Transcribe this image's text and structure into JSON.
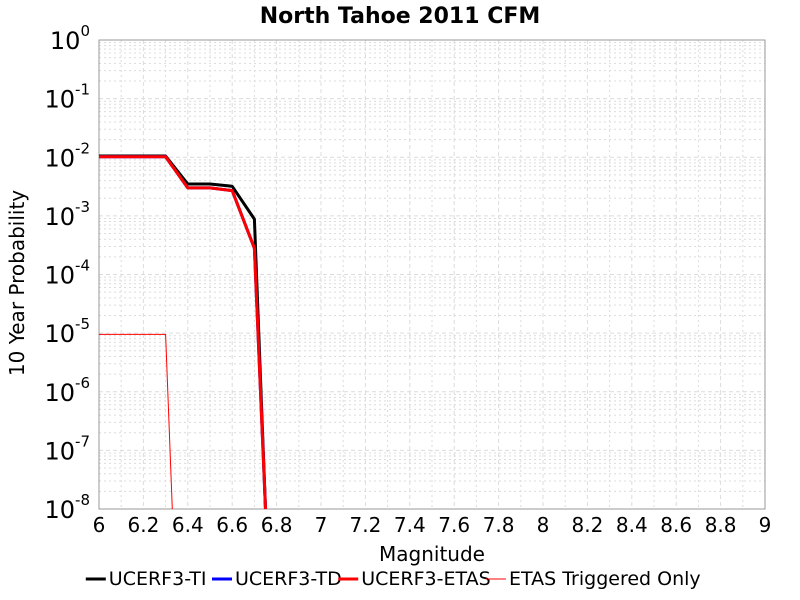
{
  "chart_data": {
    "type": "line",
    "title": "North Tahoe 2011 CFM",
    "xlabel": "Magnitude",
    "ylabel": "10 Year Probability",
    "xlim": [
      6,
      9
    ],
    "ylim": [
      1e-08,
      1
    ],
    "y_scale": "log",
    "grid": true,
    "legend_position": "bottom",
    "x_ticks": [
      "6",
      "6.2",
      "6.4",
      "6.6",
      "6.8",
      "7",
      "7.2",
      "7.4",
      "7.6",
      "7.8",
      "8",
      "8.2",
      "8.4",
      "8.6",
      "8.8",
      "9"
    ],
    "y_ticks": [
      {
        "base": "10",
        "exp": "0",
        "value": 1
      },
      {
        "base": "10",
        "exp": "-1",
        "value": 0.1
      },
      {
        "base": "10",
        "exp": "-2",
        "value": 0.01
      },
      {
        "base": "10",
        "exp": "-3",
        "value": 0.001
      },
      {
        "base": "10",
        "exp": "-4",
        "value": 0.0001
      },
      {
        "base": "10",
        "exp": "-5",
        "value": 1e-05
      },
      {
        "base": "10",
        "exp": "-6",
        "value": 1e-06
      },
      {
        "base": "10",
        "exp": "-7",
        "value": 1e-07
      },
      {
        "base": "10",
        "exp": "-8",
        "value": 1e-08
      }
    ],
    "series": [
      {
        "name": "UCERF3-TI",
        "color": "#000000",
        "width": 3,
        "x": [
          6.0,
          6.3,
          6.4,
          6.5,
          6.6,
          6.7,
          6.75
        ],
        "y": [
          0.0105,
          0.0105,
          0.0035,
          0.0035,
          0.0032,
          0.00088,
          1e-08
        ]
      },
      {
        "name": "UCERF3-TD",
        "color": "#0000ff",
        "width": 3,
        "x": [
          6.0,
          6.3,
          6.4,
          6.5,
          6.6,
          6.7,
          6.75
        ],
        "y": [
          0.0102,
          0.0102,
          0.003,
          0.003,
          0.0027,
          0.00028,
          1e-08
        ]
      },
      {
        "name": "UCERF3-ETAS",
        "color": "#ff0000",
        "width": 3,
        "x": [
          6.0,
          6.3,
          6.4,
          6.5,
          6.6,
          6.7,
          6.75
        ],
        "y": [
          0.0102,
          0.0102,
          0.003,
          0.003,
          0.0027,
          0.00028,
          1e-08
        ]
      },
      {
        "name": "ETAS Triggered Only",
        "color": "#ff0000",
        "width": 1,
        "x": [
          6.0,
          6.3,
          6.33
        ],
        "y": [
          9.5e-06,
          9.5e-06,
          1e-08
        ]
      }
    ]
  }
}
